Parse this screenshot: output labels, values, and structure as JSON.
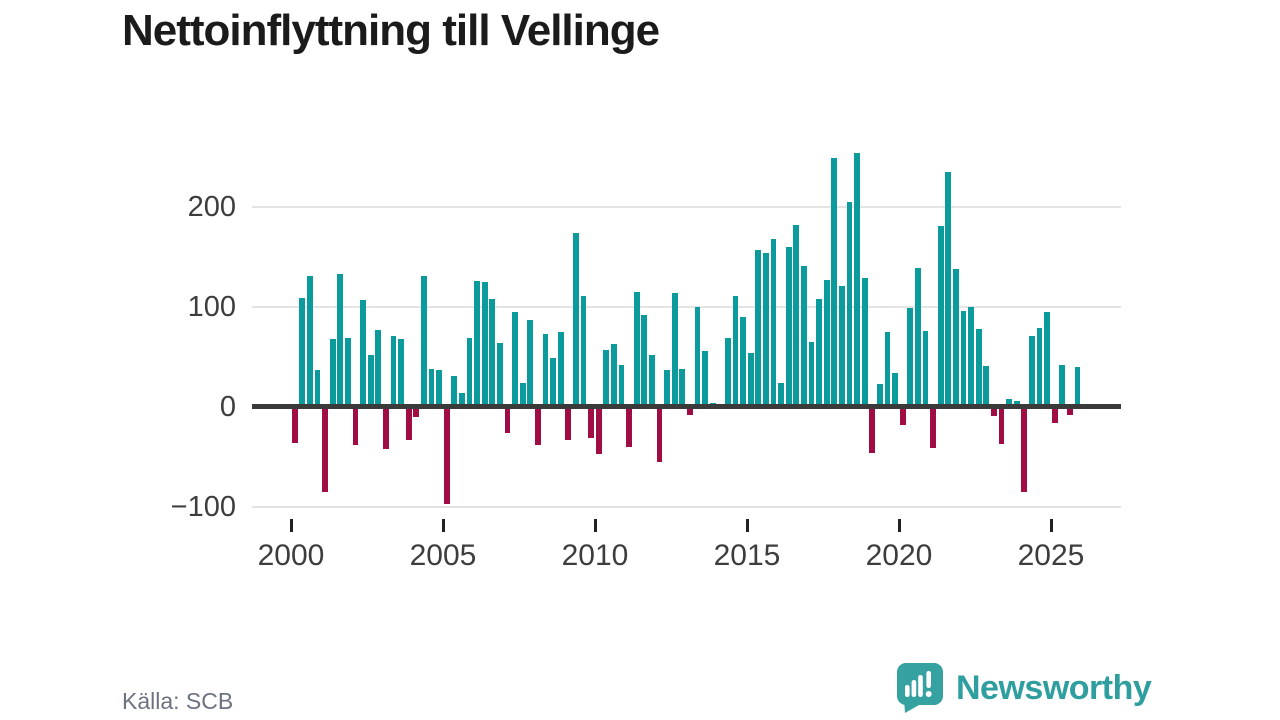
{
  "title": "Nettoinflyttning till Vellinge",
  "source": "Källa: SCB",
  "branding": {
    "name": "Newsworthy"
  },
  "colors": {
    "positive_bar": "#0b9b9c",
    "negative_bar": "#a00d45",
    "zero_line": "#3a3a3a",
    "gridline": "#e4e4e4",
    "axis_text": "#3d3d3d",
    "title_text": "#1b1b1b",
    "source_text": "#6c7280",
    "brand_teal": "#2e9e9e"
  },
  "chart_data": {
    "type": "bar",
    "title": "Nettoinflyttning till Vellinge",
    "frequency": "quarterly",
    "start_period": "2000 Q1",
    "end_period": "2025 Q4",
    "legend": "none",
    "grid": "horizontal",
    "x_tick_years": [
      2000,
      2005,
      2010,
      2015,
      2020,
      2025
    ],
    "y_ticks": [
      200,
      100,
      0,
      -100
    ],
    "y_tick_labels": [
      "200",
      "100",
      "0",
      "−100"
    ],
    "values": [
      -36,
      109,
      131,
      37,
      -85,
      68,
      133,
      69,
      -38,
      107,
      52,
      77,
      -42,
      71,
      68,
      -33,
      -10,
      131,
      38,
      37,
      -97,
      31,
      14,
      69,
      126,
      125,
      108,
      64,
      -26,
      95,
      24,
      87,
      -38,
      73,
      49,
      75,
      -33,
      174,
      111,
      -31,
      -47,
      57,
      63,
      42,
      -40,
      115,
      92,
      52,
      -55,
      37,
      114,
      38,
      -8,
      100,
      56,
      4,
      0,
      69,
      111,
      90,
      54,
      157,
      154,
      168,
      24,
      160,
      182,
      141,
      65,
      108,
      127,
      249,
      121,
      205,
      254,
      129,
      -46,
      23,
      75,
      34,
      -18,
      99,
      139,
      76,
      -41,
      181,
      235,
      138,
      96,
      100,
      78,
      41,
      -9,
      -37,
      8,
      6,
      -85,
      71,
      79,
      95,
      -16,
      42,
      -8,
      40
    ]
  }
}
